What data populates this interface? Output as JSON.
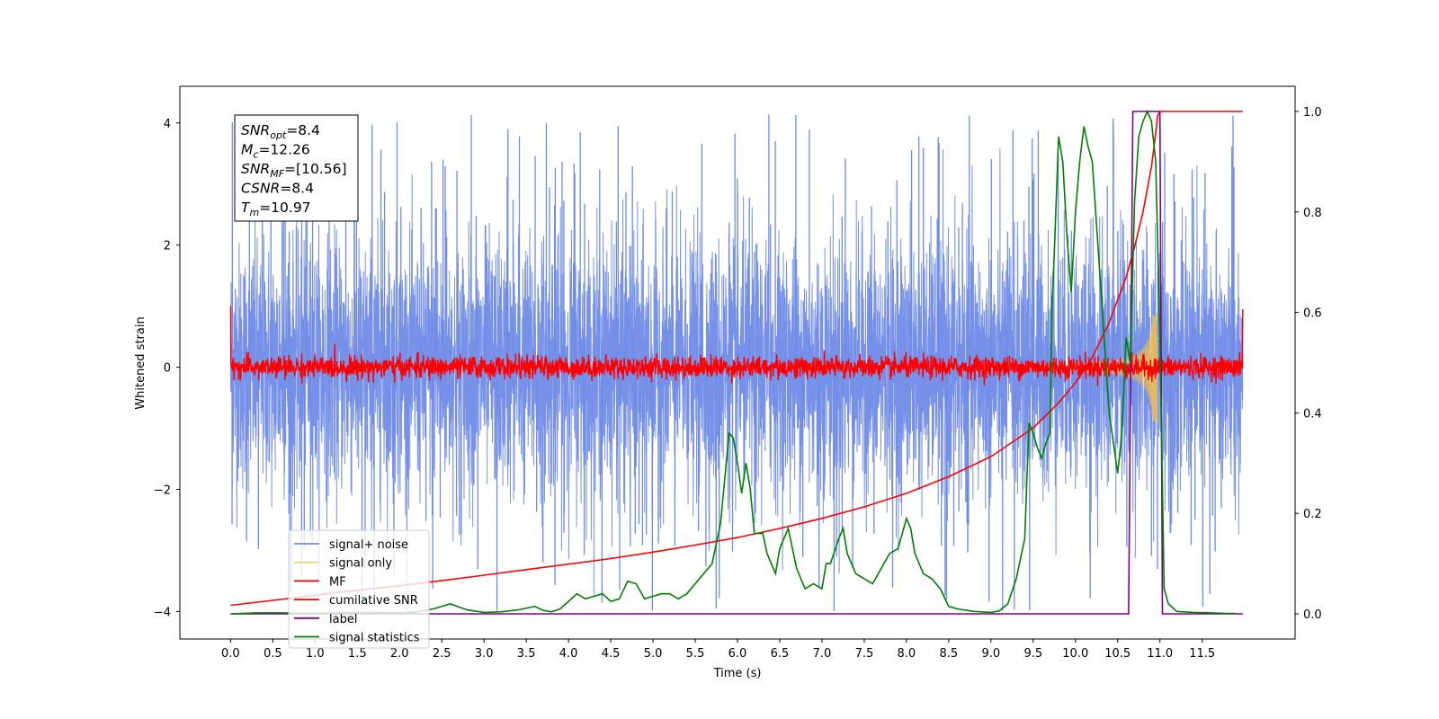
{
  "chart_data": {
    "type": "line",
    "title": "",
    "xlabel": "Time (s)",
    "ylabel": "Whitened strain",
    "xlim": [
      -0.6,
      12.6
    ],
    "ylim": [
      -4.45,
      4.6
    ],
    "y2lim": [
      -0.05,
      1.05
    ],
    "xticks": [
      0.0,
      0.5,
      1.0,
      1.5,
      2.0,
      2.5,
      3.0,
      3.5,
      4.0,
      4.5,
      5.0,
      5.5,
      6.0,
      6.5,
      7.0,
      7.5,
      8.0,
      8.5,
      9.0,
      9.5,
      10.0,
      10.5,
      11.0,
      11.5
    ],
    "xtick_labels": [
      "0.0",
      "0.5",
      "1.0",
      "1.5",
      "2.0",
      "2.5",
      "3.0",
      "3.5",
      "4.0",
      "4.5",
      "5.0",
      "5.5",
      "6.0",
      "6.5",
      "7.0",
      "7.5",
      "8.0",
      "8.5",
      "9.0",
      "9.5",
      "10.0",
      "10.5",
      "11.0",
      "11.5"
    ],
    "yticks": [
      -4,
      -2,
      0,
      2,
      4
    ],
    "ytick_labels": [
      "−4",
      "−2",
      "0",
      "2",
      "4"
    ],
    "y2ticks": [
      0.0,
      0.2,
      0.4,
      0.6,
      0.8,
      1.0
    ],
    "y2tick_labels": [
      "0.0",
      "0.2",
      "0.4",
      "0.6",
      "0.8",
      "1.0"
    ],
    "grid": false,
    "legend_position": "lower-left",
    "annotation": {
      "lines": [
        {
          "base": "SNR",
          "sub": "opt",
          "value": "=8.4"
        },
        {
          "base": "M",
          "sub": "c",
          "value": "=12.26"
        },
        {
          "base": "SNR",
          "sub": "MF",
          "value": "=[10.56]"
        },
        {
          "base": "CSNR",
          "sub": "",
          "value": "=8.4"
        },
        {
          "base": "T",
          "sub": "m",
          "value": "=10.97"
        }
      ]
    },
    "series": [
      {
        "name": "signal+ noise",
        "axis": "left",
        "color": "#6f8be6",
        "kind": "noise",
        "x_range": [
          0.0,
          11.98
        ],
        "sigma": 1.0,
        "peak_max": 4.15,
        "peak_min": -4.0
      },
      {
        "name": "signal only",
        "axis": "left",
        "color": "#f5c04d",
        "kind": "chirp",
        "x_range": [
          8.8,
          11.0
        ],
        "amplitude_peak": 0.9,
        "merger_time": 10.97
      },
      {
        "name": "MF",
        "axis": "left",
        "color": "#ff0000",
        "kind": "noise",
        "x_range": [
          0.0,
          11.98
        ],
        "sigma": 0.09,
        "start_value": 1.0,
        "end_value": 0.95
      },
      {
        "name": "cumilative SNR",
        "axis": "right",
        "color": "#ff0000",
        "kind": "line",
        "x": [
          0.0,
          0.5,
          1.0,
          1.5,
          2.0,
          2.5,
          3.0,
          3.5,
          4.0,
          4.5,
          5.0,
          5.5,
          6.0,
          6.5,
          7.0,
          7.5,
          8.0,
          8.5,
          9.0,
          9.5,
          9.8,
          10.0,
          10.2,
          10.4,
          10.6,
          10.7,
          10.8,
          10.9,
          10.96,
          10.97,
          11.0,
          11.98
        ],
        "y": [
          0.017,
          0.027,
          0.037,
          0.047,
          0.056,
          0.066,
          0.077,
          0.088,
          0.099,
          0.11,
          0.123,
          0.137,
          0.152,
          0.17,
          0.19,
          0.213,
          0.24,
          0.273,
          0.313,
          0.37,
          0.42,
          0.46,
          0.51,
          0.58,
          0.67,
          0.73,
          0.8,
          0.89,
          0.97,
          0.99,
          1.0,
          1.0
        ]
      },
      {
        "name": "label",
        "axis": "right",
        "color": "#800080",
        "kind": "line",
        "x": [
          0.0,
          10.63,
          10.68,
          11.0,
          11.03,
          11.98
        ],
        "y": [
          0.0,
          0.0,
          1.0,
          1.0,
          0.0,
          0.0
        ]
      },
      {
        "name": "signal statistics",
        "axis": "right",
        "color": "#008000",
        "kind": "line",
        "x": [
          0.0,
          0.3,
          0.6,
          1.0,
          1.5,
          2.0,
          2.2,
          2.4,
          2.6,
          2.8,
          3.0,
          3.2,
          3.4,
          3.6,
          3.7,
          3.8,
          3.9,
          4.0,
          4.1,
          4.2,
          4.3,
          4.4,
          4.5,
          4.6,
          4.7,
          4.8,
          4.9,
          5.0,
          5.1,
          5.2,
          5.3,
          5.4,
          5.5,
          5.6,
          5.7,
          5.8,
          5.9,
          5.95,
          6.0,
          6.05,
          6.1,
          6.15,
          6.2,
          6.3,
          6.35,
          6.45,
          6.5,
          6.55,
          6.6,
          6.7,
          6.8,
          6.9,
          7.0,
          7.05,
          7.1,
          7.2,
          7.25,
          7.3,
          7.4,
          7.5,
          7.6,
          7.7,
          7.8,
          7.9,
          8.0,
          8.05,
          8.1,
          8.2,
          8.3,
          8.4,
          8.5,
          8.6,
          8.8,
          9.0,
          9.1,
          9.2,
          9.3,
          9.4,
          9.45,
          9.5,
          9.55,
          9.6,
          9.65,
          9.7,
          9.72,
          9.75,
          9.8,
          9.85,
          9.9,
          9.95,
          10.0,
          10.05,
          10.1,
          10.15,
          10.2,
          10.3,
          10.4,
          10.5,
          10.55,
          10.6,
          10.65,
          10.7,
          10.75,
          10.8,
          10.85,
          10.9,
          10.95,
          11.0,
          11.05,
          11.1,
          11.2,
          11.4,
          11.6,
          11.8,
          11.9
        ],
        "y": [
          0.0,
          0.002,
          0.002,
          0.001,
          0.003,
          0.002,
          0.004,
          0.01,
          0.02,
          0.008,
          0.003,
          0.004,
          0.008,
          0.015,
          0.007,
          0.004,
          0.01,
          0.025,
          0.04,
          0.03,
          0.035,
          0.04,
          0.025,
          0.03,
          0.065,
          0.06,
          0.03,
          0.035,
          0.04,
          0.04,
          0.03,
          0.04,
          0.06,
          0.08,
          0.1,
          0.18,
          0.36,
          0.35,
          0.3,
          0.24,
          0.3,
          0.25,
          0.16,
          0.16,
          0.12,
          0.08,
          0.13,
          0.15,
          0.17,
          0.09,
          0.05,
          0.06,
          0.05,
          0.1,
          0.1,
          0.15,
          0.17,
          0.12,
          0.08,
          0.07,
          0.06,
          0.09,
          0.12,
          0.13,
          0.19,
          0.17,
          0.12,
          0.08,
          0.07,
          0.05,
          0.015,
          0.01,
          0.005,
          0.003,
          0.006,
          0.02,
          0.07,
          0.15,
          0.38,
          0.36,
          0.33,
          0.31,
          0.34,
          0.36,
          0.6,
          0.72,
          0.95,
          0.9,
          0.75,
          0.64,
          0.8,
          0.9,
          0.97,
          0.93,
          0.9,
          0.65,
          0.4,
          0.28,
          0.36,
          0.55,
          0.5,
          0.82,
          0.95,
          0.98,
          1.0,
          0.98,
          0.9,
          0.55,
          0.05,
          0.02,
          0.005,
          0.003,
          0.002,
          0.001,
          0.001
        ]
      }
    ]
  }
}
